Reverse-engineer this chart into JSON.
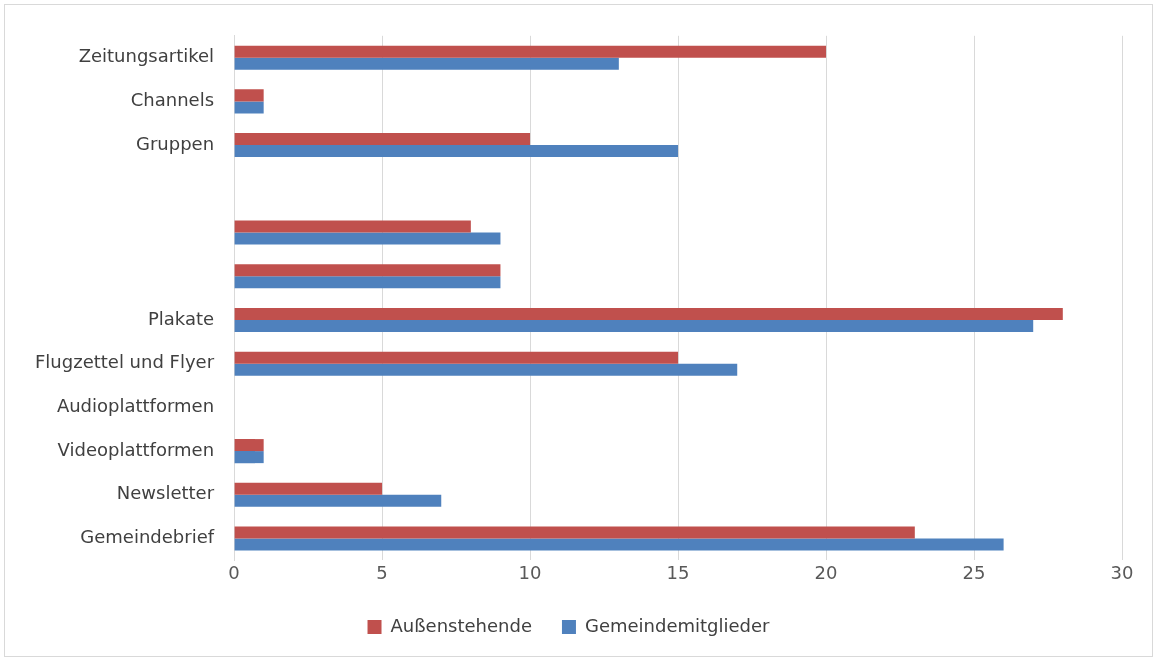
{
  "chart_data": {
    "type": "bar",
    "orientation": "horizontal",
    "categories": [
      "Zeitungsartikel",
      "Channels",
      "Gruppen",
      null,
      null,
      null,
      "Plakate",
      "Flugzettel und Flyer",
      "Audioplattformen",
      "Videoplattformen",
      "Newsletter",
      "Gemeindebrief"
    ],
    "series": [
      {
        "name": "Außenstehende",
        "color": "#c0504d",
        "values": [
          20,
          1,
          10,
          0,
          8,
          9,
          28,
          15,
          0,
          1,
          5,
          23
        ]
      },
      {
        "name": "Gemeindemitglieder",
        "color": "#4f81bd",
        "values": [
          13,
          1,
          15,
          0,
          9,
          9,
          27,
          17,
          0,
          1,
          7,
          26
        ]
      }
    ],
    "xlim": [
      0,
      30
    ],
    "xticks": [
      0,
      5,
      10,
      15,
      20,
      25,
      30
    ],
    "grid": "x",
    "legend": "bottom"
  }
}
